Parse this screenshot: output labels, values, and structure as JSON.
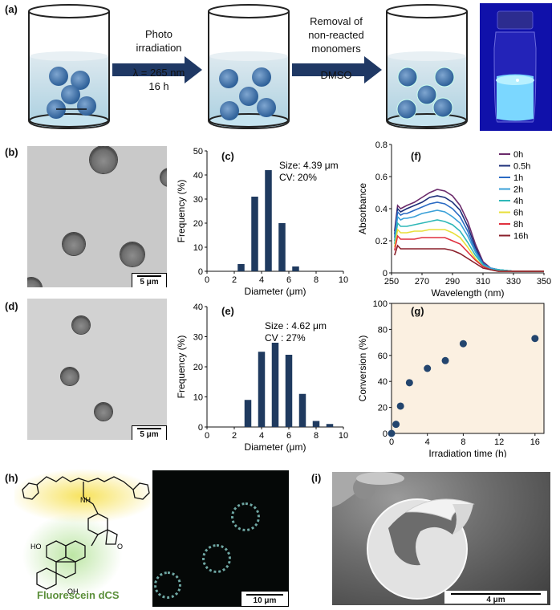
{
  "panels": {
    "a": "(a)",
    "b": "(b)",
    "c": "(c)",
    "d": "(d)",
    "e": "(e)",
    "f": "(f)",
    "g": "(g)",
    "h": "(h)",
    "i": "(i)"
  },
  "scheme": {
    "step1_line1": "Photo",
    "step1_line2": "irradiation",
    "step1_line3": "λ = 265 nm",
    "step1_line4": "16 h",
    "step2_line1": "Removal of",
    "step2_line2": "non-reacted",
    "step2_line3": "monomers",
    "step2_line4": "DMSO"
  },
  "micrographs": {
    "b_scale": "5 μm",
    "d_scale": "5 μm",
    "h_scale": "10 μm",
    "i_scale": "4 μm"
  },
  "molecule": {
    "name": "Fluorescein dCS",
    "ho_label": "HO",
    "oh_label": "OH",
    "nh_label": "NH",
    "o_label": "O"
  },
  "colors": {
    "bar": "#1f3a5f",
    "point": "#23456e",
    "arrow": "#1f3864",
    "plot_bg": "#fbf0e1",
    "molecule_glow": "#f6df4a",
    "molecule_name": "#5b8f3a"
  },
  "chart_data": [
    {
      "id": "c",
      "type": "bar",
      "xlabel": "Diameter (μm)",
      "ylabel": "Frequency (%)",
      "xlim": [
        0,
        10
      ],
      "ylim": [
        0,
        50
      ],
      "xticks": [
        0,
        2,
        4,
        6,
        8,
        10
      ],
      "yticks": [
        0,
        10,
        20,
        30,
        40,
        50
      ],
      "annotation_line1": "Size: 4.39 μm",
      "annotation_line2": "CV: 20%",
      "x": [
        2.5,
        3.5,
        4.5,
        5.5,
        6.5
      ],
      "values": [
        3,
        31,
        42,
        20,
        2
      ]
    },
    {
      "id": "e",
      "type": "bar",
      "xlabel": "Diameter (μm)",
      "ylabel": "Frequency (%)",
      "xlim": [
        0,
        10
      ],
      "ylim": [
        0,
        40
      ],
      "xticks": [
        0,
        2,
        4,
        6,
        8,
        10
      ],
      "yticks": [
        0,
        10,
        20,
        30,
        40
      ],
      "annotation_line1": "Size : 4.62 μm",
      "annotation_line2": "CV : 27%",
      "x": [
        3,
        4,
        5,
        6,
        7,
        8,
        9
      ],
      "values": [
        9,
        25,
        28,
        24,
        11,
        2,
        1
      ]
    },
    {
      "id": "f",
      "type": "line",
      "xlabel": "Wavelength (nm)",
      "ylabel": "Absorbance",
      "xlim": [
        250,
        350
      ],
      "ylim": [
        0,
        0.8
      ],
      "xticks": [
        250,
        270,
        290,
        310,
        330,
        350
      ],
      "yticks": [
        0,
        0.2,
        0.4,
        0.6,
        0.8
      ],
      "ytick_labels": [
        "0",
        "0.2",
        "0.4",
        "0.6",
        "0.8"
      ],
      "x": [
        252,
        254,
        256,
        258,
        260,
        265,
        270,
        275,
        280,
        285,
        290,
        295,
        300,
        305,
        310,
        315,
        320,
        330,
        340,
        350
      ],
      "series": [
        {
          "name": "0h",
          "color": "#6b2b6b",
          "values": [
            0.26,
            0.42,
            0.4,
            0.41,
            0.42,
            0.44,
            0.47,
            0.5,
            0.52,
            0.51,
            0.48,
            0.42,
            0.32,
            0.18,
            0.07,
            0.03,
            0.02,
            0.01,
            0.01,
            0.01
          ]
        },
        {
          "name": "0.5h",
          "color": "#1c2f7a",
          "values": [
            0.24,
            0.4,
            0.38,
            0.39,
            0.4,
            0.42,
            0.44,
            0.47,
            0.48,
            0.47,
            0.44,
            0.39,
            0.29,
            0.16,
            0.06,
            0.03,
            0.02,
            0.01,
            0.01,
            0.01
          ]
        },
        {
          "name": "1h",
          "color": "#2b6bc4",
          "values": [
            0.22,
            0.38,
            0.36,
            0.37,
            0.37,
            0.39,
            0.41,
            0.43,
            0.44,
            0.43,
            0.4,
            0.35,
            0.26,
            0.14,
            0.06,
            0.03,
            0.02,
            0.01,
            0.01,
            0.01
          ]
        },
        {
          "name": "2h",
          "color": "#3aa0d8",
          "values": [
            0.2,
            0.35,
            0.33,
            0.34,
            0.34,
            0.35,
            0.37,
            0.38,
            0.39,
            0.38,
            0.35,
            0.31,
            0.23,
            0.13,
            0.05,
            0.03,
            0.02,
            0.01,
            0.01,
            0.01
          ]
        },
        {
          "name": "4h",
          "color": "#2fb8b8",
          "values": [
            0.18,
            0.31,
            0.29,
            0.29,
            0.29,
            0.3,
            0.31,
            0.32,
            0.33,
            0.32,
            0.3,
            0.26,
            0.19,
            0.11,
            0.05,
            0.02,
            0.02,
            0.01,
            0.01,
            0.01
          ]
        },
        {
          "name": "6h",
          "color": "#e8df3a",
          "values": [
            0.16,
            0.27,
            0.25,
            0.25,
            0.25,
            0.26,
            0.26,
            0.27,
            0.27,
            0.27,
            0.25,
            0.22,
            0.16,
            0.09,
            0.04,
            0.02,
            0.01,
            0.01,
            0.01,
            0.01
          ]
        },
        {
          "name": "8h",
          "color": "#e0313f",
          "values": [
            0.14,
            0.23,
            0.21,
            0.21,
            0.21,
            0.21,
            0.22,
            0.22,
            0.22,
            0.22,
            0.2,
            0.18,
            0.13,
            0.08,
            0.04,
            0.02,
            0.01,
            0.01,
            0.01,
            0.01
          ]
        },
        {
          "name": "16h",
          "color": "#8a1f2a",
          "values": [
            0.11,
            0.17,
            0.15,
            0.15,
            0.15,
            0.15,
            0.15,
            0.15,
            0.15,
            0.15,
            0.14,
            0.12,
            0.09,
            0.06,
            0.03,
            0.02,
            0.01,
            0.01,
            0.01,
            0.01
          ]
        }
      ]
    },
    {
      "id": "g",
      "type": "scatter",
      "xlabel": "Irradiation time (h)",
      "ylabel": "Conversion (%)",
      "xlim": [
        0,
        17
      ],
      "ylim": [
        0,
        100
      ],
      "xticks": [
        0,
        4,
        8,
        12,
        16
      ],
      "yticks": [
        0,
        20,
        40,
        60,
        80,
        100
      ],
      "x": [
        0,
        0.5,
        1,
        2,
        4,
        6,
        8,
        16
      ],
      "values": [
        0,
        7,
        21,
        39,
        50,
        56,
        69,
        73
      ]
    }
  ]
}
